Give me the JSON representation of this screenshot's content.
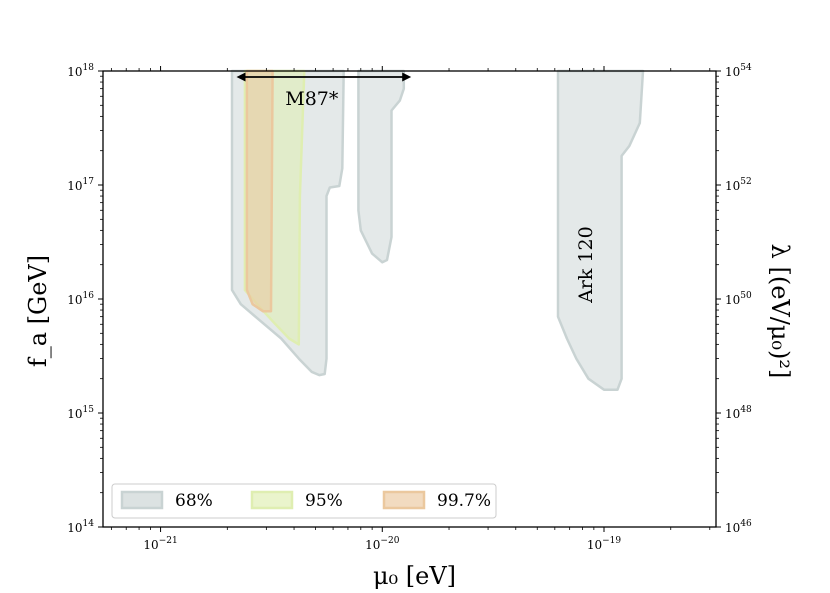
{
  "chart_data": {
    "type": "area",
    "xlabel": "μ₀ [eV]",
    "ylabel_left": "f_a [GeV]",
    "ylabel_right": "λ [(eV/μ₀)²]",
    "x_scale": "log",
    "y_scale": "log",
    "xlim": [
      5.5e-22,
      3.2e-19
    ],
    "ylim": [
      100000000000000.0,
      1e+18
    ],
    "x_ticks": [
      {
        "value": 1e-21,
        "label": "10^-21"
      },
      {
        "value": 1e-20,
        "label": "10^-20"
      },
      {
        "value": 1e-19,
        "label": "10^-19"
      }
    ],
    "y_ticks_left": [
      {
        "value": 100000000000000.0,
        "label": "10^14"
      },
      {
        "value": 1000000000000000.0,
        "label": "10^15"
      },
      {
        "value": 1e+16,
        "label": "10^16"
      },
      {
        "value": 1e+17,
        "label": "10^17"
      },
      {
        "value": 1e+18,
        "label": "10^18"
      }
    ],
    "y_ticks_right": [
      "10^46",
      "10^48",
      "10^50",
      "10^52",
      "10^54"
    ],
    "grid": false,
    "legend_position": "bottom-left",
    "series": [
      {
        "name": "68%",
        "color": "#c9d3d3",
        "regions": [
          [
            [
              2.1e-21,
              1e+18
            ],
            [
              2.1e-21,
              1.2e+16
            ],
            [
              2.3e-21,
              9000000000000000.0
            ],
            [
              2.8e-21,
              6500000000000000.0
            ],
            [
              3.5e-21,
              4500000000000000.0
            ],
            [
              4.2e-21,
              3000000000000000.0
            ],
            [
              4.8e-21,
              2300000000000000.0
            ],
            [
              5.2e-21,
              2150000000000000.0
            ],
            [
              5.5e-21,
              2200000000000000.0
            ],
            [
              5.6e-21,
              3000000000000000.0
            ],
            [
              5.6e-21,
              8e+16
            ],
            [
              5.8e-21,
              9.5e+16
            ],
            [
              6.4e-21,
              9.8e+16
            ],
            [
              6.6e-21,
              1.4e+17
            ],
            [
              6.7e-21,
              1e+18
            ]
          ],
          [
            [
              7.8e-21,
              1e+18
            ],
            [
              7.8e-21,
              6e+16
            ],
            [
              8e-21,
              4e+16
            ],
            [
              9e-21,
              2.5e+16
            ],
            [
              1e-20,
              2.1e+16
            ],
            [
              1.05e-20,
              2.2e+16
            ],
            [
              1.1e-20,
              3.5e+16
            ],
            [
              1.1e-20,
              4.5e+17
            ],
            [
              1.2e-20,
              5.5e+17
            ],
            [
              1.25e-20,
              7e+17
            ],
            [
              1.25e-20,
              1e+18
            ]
          ],
          [
            [
              6.2e-20,
              1e+18
            ],
            [
              6.2e-20,
              7000000000000000.0
            ],
            [
              6.8e-20,
              4500000000000000.0
            ],
            [
              7.5e-20,
              3000000000000000.0
            ],
            [
              8.5e-20,
              2000000000000000.0
            ],
            [
              1e-19,
              1600000000000000.0
            ],
            [
              1.15e-19,
              1600000000000000.0
            ],
            [
              1.2e-19,
              2000000000000000.0
            ],
            [
              1.2e-19,
              1.8e+17
            ],
            [
              1.3e-19,
              2.2e+17
            ],
            [
              1.45e-19,
              3.5e+17
            ],
            [
              1.5e-19,
              1e+18
            ]
          ]
        ]
      },
      {
        "name": "95%",
        "color": "#dfeeb1",
        "regions": [
          [
            [
              2.4e-21,
              1e+18
            ],
            [
              2.4e-21,
              1.2e+16
            ],
            [
              2.8e-21,
              8500000000000000.0
            ],
            [
              3.3e-21,
              6000000000000000.0
            ],
            [
              3.8e-21,
              4500000000000000.0
            ],
            [
              4.2e-21,
              4000000000000000.0
            ],
            [
              4.25e-21,
              8e+16
            ],
            [
              4.45e-21,
              1e+18
            ]
          ]
        ]
      },
      {
        "name": "99.7%",
        "color": "#ebc89e",
        "regions": [
          [
            [
              2.45e-21,
              1e+18
            ],
            [
              2.45e-21,
              1.2e+16
            ],
            [
              2.6e-21,
              9000000000000000.0
            ],
            [
              2.9e-21,
              7800000000000000.0
            ],
            [
              3.15e-21,
              7800000000000000.0
            ],
            [
              3.2e-21,
              1e+18
            ]
          ]
        ]
      }
    ],
    "annotations": [
      {
        "text": "M87*",
        "x_range": [
          2.2e-21,
          1.35e-20
        ],
        "y": 1e+18,
        "type": "double-arrow"
      },
      {
        "text": "Ark 120",
        "x": 1e-19,
        "y": 3e+16,
        "rotation": -90
      }
    ]
  }
}
